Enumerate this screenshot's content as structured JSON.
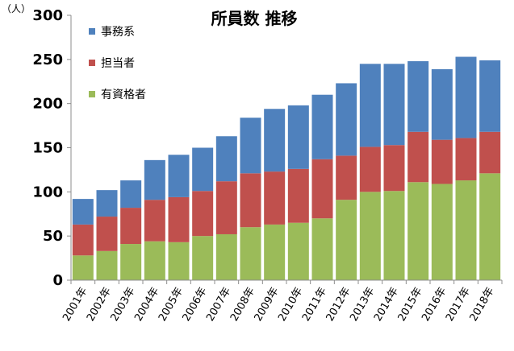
{
  "chart_data": {
    "type": "bar",
    "stacked": true,
    "title": "所員数 推移",
    "unit_label": "（人）",
    "categories": [
      "2001年",
      "2002年",
      "2003年",
      "2004年",
      "2005年",
      "2006年",
      "2007年",
      "2008年",
      "2009年",
      "2010年",
      "2011年",
      "2012年",
      "2013年",
      "2014年",
      "2015年",
      "2016年",
      "2017年",
      "2018年"
    ],
    "series": [
      {
        "name": "有資格者",
        "color": "#9BBB59",
        "values": [
          28,
          33,
          41,
          44,
          43,
          50,
          52,
          60,
          63,
          65,
          70,
          91,
          100,
          101,
          111,
          109,
          113,
          121
        ]
      },
      {
        "name": "担当者",
        "color": "#C0504D",
        "values": [
          35,
          39,
          41,
          47,
          51,
          51,
          60,
          61,
          60,
          61,
          67,
          50,
          51,
          52,
          57,
          50,
          48,
          47
        ]
      },
      {
        "name": "事務系",
        "color": "#4F81BD",
        "values": [
          29,
          30,
          31,
          45,
          48,
          49,
          51,
          63,
          71,
          72,
          73,
          82,
          94,
          92,
          80,
          80,
          92,
          81
        ]
      }
    ],
    "ylim": [
      0,
      300
    ],
    "yticks": [
      0,
      50,
      100,
      150,
      200,
      250,
      300
    ],
    "grid": false,
    "legend_placement": "top-left"
  }
}
